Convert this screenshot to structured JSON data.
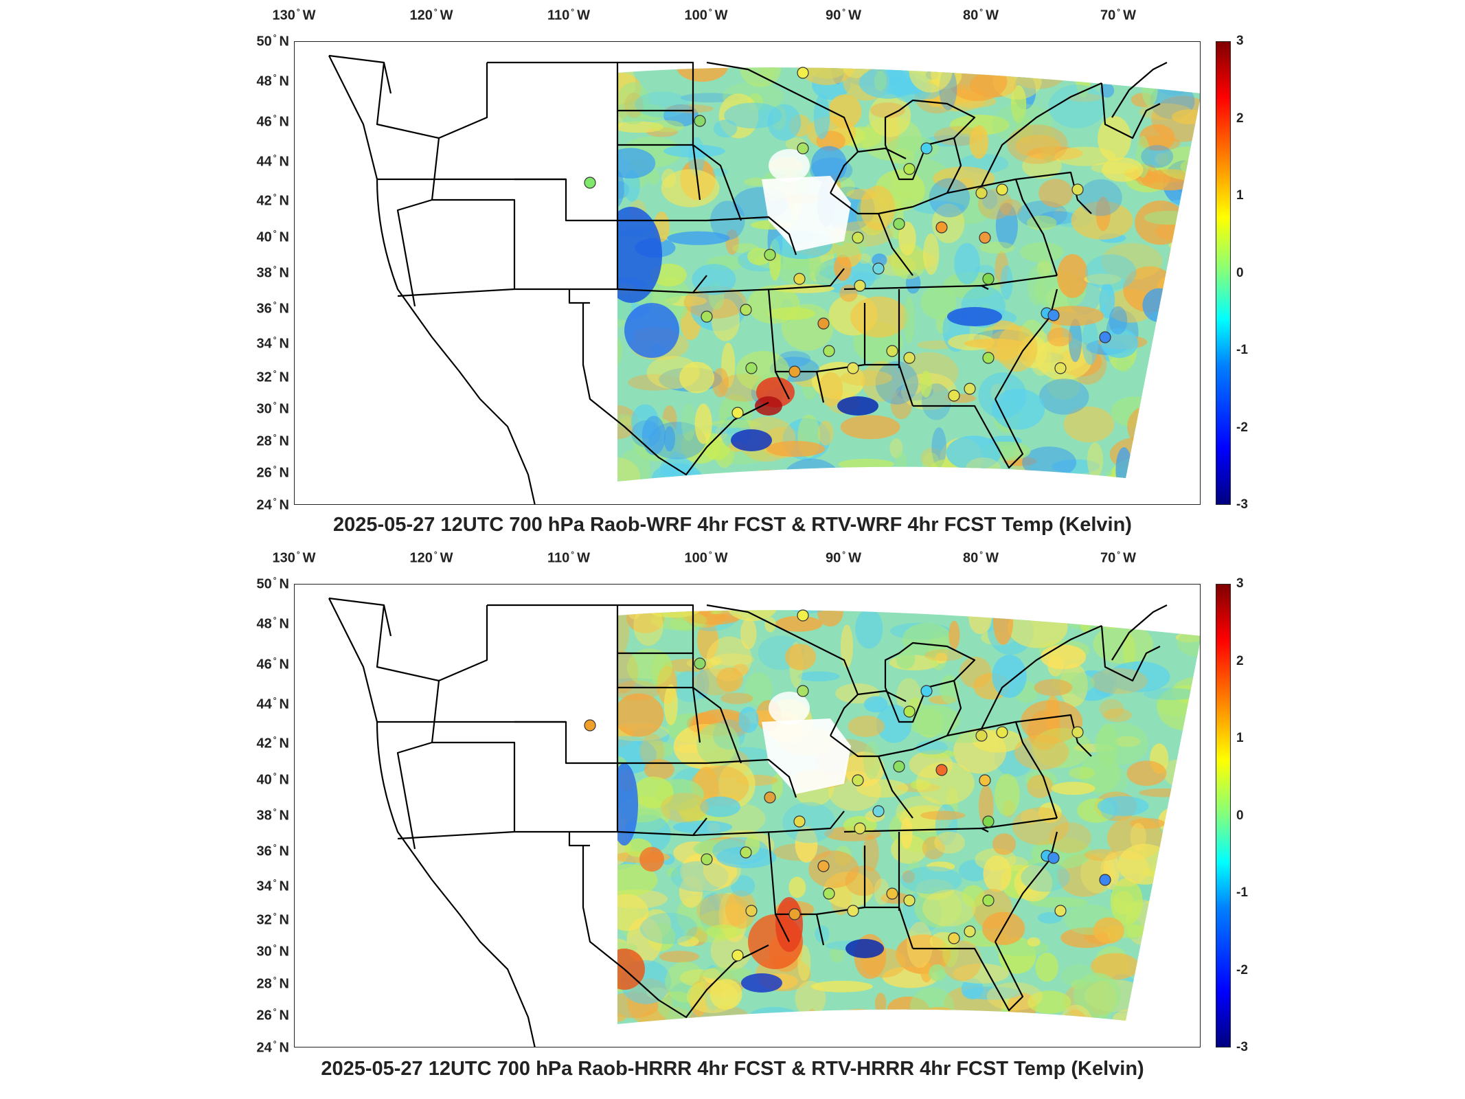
{
  "axes": {
    "lon_ticks": [
      "130",
      "120",
      "110",
      "100",
      "90",
      "80",
      "70"
    ],
    "lon_suffix": "W",
    "lat_ticks": [
      "50",
      "48",
      "46",
      "44",
      "42",
      "40",
      "38",
      "36",
      "34",
      "32",
      "30",
      "28",
      "26",
      "24"
    ],
    "lat_suffix": "N",
    "deg_symbol": "°"
  },
  "colorbar": {
    "ticks": [
      "3",
      "2",
      "1",
      "0",
      "-1",
      "-2",
      "-3"
    ],
    "range": [
      -3,
      3
    ],
    "colormap": [
      "#00007f",
      "#0000ff",
      "#0080ff",
      "#00ffff",
      "#80ff80",
      "#ffff00",
      "#ff8000",
      "#ff0000",
      "#800000"
    ]
  },
  "panels": [
    {
      "title": "2025-05-27 12UTC 700 hPa Raob-WRF 4hr FCST & RTV-WRF 4hr FCST Temp (Kelvin)",
      "stations": [
        {
          "c": "#f3ef4a"
        },
        {
          "c": "#7fe86c"
        },
        {
          "c": "#8ad86a"
        },
        {
          "c": "#a8e265"
        },
        {
          "c": "#48d0ee"
        },
        {
          "c": "#b4e64e"
        },
        {
          "c": "#ddd94a"
        },
        {
          "c": "#e9e64a"
        },
        {
          "c": "#dde054"
        },
        {
          "c": "#f0993a"
        },
        {
          "c": "#cde455"
        },
        {
          "c": "#9ce060"
        },
        {
          "c": "#e7d84a"
        },
        {
          "c": "#8ade61"
        },
        {
          "c": "#f49a2c"
        },
        {
          "c": "#e0e05a"
        },
        {
          "c": "#7fd84e"
        },
        {
          "c": "#a7e15c"
        },
        {
          "c": "#b6e35d"
        },
        {
          "c": "#e69a30"
        },
        {
          "c": "#3fc1f3"
        },
        {
          "c": "#6fd6e0"
        },
        {
          "c": "#9be262"
        },
        {
          "c": "#a9e45f"
        },
        {
          "c": "#e8e55c"
        },
        {
          "c": "#dfe156"
        },
        {
          "c": "#d6e253"
        },
        {
          "c": "#e9a22d"
        },
        {
          "c": "#f1ee4b"
        },
        {
          "c": "#e6e34f"
        },
        {
          "c": "#dfe25b"
        },
        {
          "c": "#a3e356"
        },
        {
          "c": "#3b86f0"
        },
        {
          "c": "#e6e35a"
        },
        {
          "c": "#3c8df0"
        }
      ]
    },
    {
      "title": "2025-05-27 12UTC 700 hPa Raob-HRRR 4hr FCST & RTV-HRRR 4hr FCST Temp (Kelvin)",
      "stations": [
        {
          "c": "#f3ef4a"
        },
        {
          "c": "#ef9f2a"
        },
        {
          "c": "#8ad86a"
        },
        {
          "c": "#a8e265"
        },
        {
          "c": "#48d0ee"
        },
        {
          "c": "#b4e64e"
        },
        {
          "c": "#ddd94a"
        },
        {
          "c": "#e9e64a"
        },
        {
          "c": "#dde054"
        },
        {
          "c": "#f3c13c"
        },
        {
          "c": "#cde455"
        },
        {
          "c": "#e1a23d"
        },
        {
          "c": "#e7d84a"
        },
        {
          "c": "#8ade61"
        },
        {
          "c": "#f06a2c"
        },
        {
          "c": "#e0e05a"
        },
        {
          "c": "#7fd84e"
        },
        {
          "c": "#a7e15c"
        },
        {
          "c": "#b6e35d"
        },
        {
          "c": "#f0a93a"
        },
        {
          "c": "#3fc1f3"
        },
        {
          "c": "#6fd6e0"
        },
        {
          "c": "#e9ce4a"
        },
        {
          "c": "#a9e45f"
        },
        {
          "c": "#e8e55c"
        },
        {
          "c": "#dfe156"
        },
        {
          "c": "#f0c23c"
        },
        {
          "c": "#e9a22d"
        },
        {
          "c": "#f1ee4b"
        },
        {
          "c": "#f0d24b"
        },
        {
          "c": "#dfe25b"
        },
        {
          "c": "#a3e356"
        },
        {
          "c": "#3b86f0"
        },
        {
          "c": "#e6e35a"
        },
        {
          "c": "#3c8df0"
        }
      ]
    }
  ]
}
